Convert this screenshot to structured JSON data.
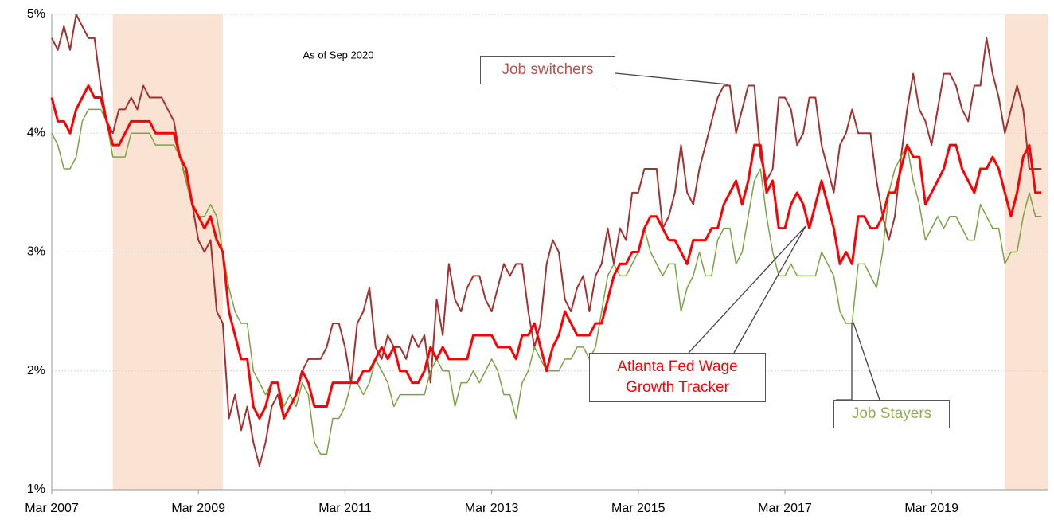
{
  "chart_data": {
    "type": "line",
    "annotation": "As of Sep 2020",
    "x": [
      "2007-03",
      "2007-04",
      "2007-05",
      "2007-06",
      "2007-07",
      "2007-08",
      "2007-09",
      "2007-10",
      "2007-11",
      "2007-12",
      "2008-01",
      "2008-02",
      "2008-03",
      "2008-04",
      "2008-05",
      "2008-06",
      "2008-07",
      "2008-08",
      "2008-09",
      "2008-10",
      "2008-11",
      "2008-12",
      "2009-01",
      "2009-02",
      "2009-03",
      "2009-04",
      "2009-05",
      "2009-06",
      "2009-07",
      "2009-08",
      "2009-09",
      "2009-10",
      "2009-11",
      "2009-12",
      "2010-01",
      "2010-02",
      "2010-03",
      "2010-04",
      "2010-05",
      "2010-06",
      "2010-07",
      "2010-08",
      "2010-09",
      "2010-10",
      "2010-11",
      "2010-12",
      "2011-01",
      "2011-02",
      "2011-03",
      "2011-04",
      "2011-05",
      "2011-06",
      "2011-07",
      "2011-08",
      "2011-09",
      "2011-10",
      "2011-11",
      "2011-12",
      "2012-01",
      "2012-02",
      "2012-03",
      "2012-04",
      "2012-05",
      "2012-06",
      "2012-07",
      "2012-08",
      "2012-09",
      "2012-10",
      "2012-11",
      "2012-12",
      "2013-01",
      "2013-02",
      "2013-03",
      "2013-04",
      "2013-05",
      "2013-06",
      "2013-07",
      "2013-08",
      "2013-09",
      "2013-10",
      "2013-11",
      "2013-12",
      "2014-01",
      "2014-02",
      "2014-03",
      "2014-04",
      "2014-05",
      "2014-06",
      "2014-07",
      "2014-08",
      "2014-09",
      "2014-10",
      "2014-11",
      "2014-12",
      "2015-01",
      "2015-02",
      "2015-03",
      "2015-04",
      "2015-05",
      "2015-06",
      "2015-07",
      "2015-08",
      "2015-09",
      "2015-10",
      "2015-11",
      "2015-12",
      "2016-01",
      "2016-02",
      "2016-03",
      "2016-04",
      "2016-05",
      "2016-06",
      "2016-07",
      "2016-08",
      "2016-09",
      "2016-10",
      "2016-11",
      "2016-12",
      "2017-01",
      "2017-02",
      "2017-03",
      "2017-04",
      "2017-05",
      "2017-06",
      "2017-07",
      "2017-08",
      "2017-09",
      "2017-10",
      "2017-11",
      "2017-12",
      "2018-01",
      "2018-02",
      "2018-03",
      "2018-04",
      "2018-05",
      "2018-06",
      "2018-07",
      "2018-08",
      "2018-09",
      "2018-10",
      "2018-11",
      "2018-12",
      "2019-01",
      "2019-02",
      "2019-03",
      "2019-04",
      "2019-05",
      "2019-06",
      "2019-07",
      "2019-08",
      "2019-09",
      "2019-10",
      "2019-11",
      "2019-12",
      "2020-01",
      "2020-02",
      "2020-03",
      "2020-04",
      "2020-05",
      "2020-06",
      "2020-07",
      "2020-08",
      "2020-09"
    ],
    "series": [
      {
        "name": "Job switchers",
        "color": "#a5312f",
        "width": 2,
        "values": [
          4.8,
          4.7,
          4.9,
          4.7,
          5.0,
          4.9,
          4.8,
          4.8,
          4.4,
          4.1,
          4.0,
          4.2,
          4.2,
          4.3,
          4.2,
          4.4,
          4.3,
          4.3,
          4.3,
          4.2,
          4.1,
          3.8,
          3.6,
          3.4,
          3.1,
          3.0,
          3.1,
          2.5,
          2.4,
          1.6,
          1.8,
          1.5,
          1.7,
          1.4,
          1.2,
          1.4,
          1.7,
          1.8,
          1.6,
          1.7,
          1.8,
          2.0,
          2.1,
          2.1,
          2.1,
          2.2,
          2.4,
          2.4,
          2.2,
          1.9,
          2.4,
          2.5,
          2.7,
          2.2,
          2.1,
          2.3,
          2.2,
          2.2,
          2.1,
          2.3,
          2.2,
          2.3,
          1.9,
          2.6,
          2.3,
          2.9,
          2.6,
          2.5,
          2.7,
          2.8,
          2.8,
          2.6,
          2.5,
          2.7,
          2.9,
          2.8,
          2.9,
          2.9,
          2.5,
          2.2,
          2.4,
          2.9,
          3.1,
          3.0,
          2.6,
          2.5,
          2.7,
          2.8,
          2.5,
          2.8,
          2.9,
          3.2,
          2.9,
          3.2,
          3.1,
          3.5,
          3.5,
          3.7,
          3.7,
          3.7,
          3.2,
          3.3,
          3.5,
          3.9,
          3.5,
          3.4,
          3.7,
          3.9,
          4.1,
          4.3,
          4.4,
          4.4,
          4.0,
          4.2,
          4.4,
          4.4,
          3.8,
          3.6,
          3.7,
          4.3,
          4.3,
          4.2,
          3.9,
          4.0,
          4.3,
          4.3,
          3.9,
          3.7,
          3.5,
          3.9,
          4.0,
          4.2,
          4.0,
          4.0,
          4.0,
          3.6,
          3.3,
          3.1,
          3.3,
          3.8,
          4.2,
          4.5,
          4.2,
          4.1,
          3.9,
          4.2,
          4.5,
          4.5,
          4.4,
          4.2,
          4.1,
          4.4,
          4.4,
          4.8,
          4.5,
          4.3,
          4.0,
          4.2,
          4.4,
          4.2,
          3.7,
          3.7,
          3.7
        ]
      },
      {
        "name": "Atlanta Fed Wage Growth Tracker",
        "color": "#ff0000",
        "width": 3,
        "values": [
          4.3,
          4.1,
          4.1,
          4.0,
          4.2,
          4.3,
          4.4,
          4.3,
          4.3,
          4.1,
          3.9,
          3.9,
          4.0,
          4.1,
          4.1,
          4.1,
          4.1,
          4.0,
          4.0,
          4.0,
          4.0,
          3.8,
          3.7,
          3.4,
          3.3,
          3.2,
          3.3,
          3.1,
          3.0,
          2.5,
          2.3,
          2.1,
          2.1,
          1.7,
          1.6,
          1.7,
          1.9,
          1.9,
          1.6,
          1.7,
          1.8,
          2.0,
          1.9,
          1.7,
          1.7,
          1.7,
          1.9,
          1.9,
          1.9,
          1.9,
          1.9,
          2.0,
          2.0,
          2.1,
          2.2,
          2.1,
          2.2,
          2.0,
          2.0,
          1.9,
          1.9,
          2.0,
          2.2,
          2.1,
          2.2,
          2.1,
          2.1,
          2.1,
          2.1,
          2.3,
          2.3,
          2.3,
          2.3,
          2.2,
          2.2,
          2.2,
          2.1,
          2.3,
          2.3,
          2.4,
          2.2,
          2.0,
          2.2,
          2.3,
          2.5,
          2.4,
          2.3,
          2.3,
          2.3,
          2.4,
          2.4,
          2.6,
          2.8,
          2.9,
          2.9,
          3.0,
          3.0,
          3.2,
          3.3,
          3.3,
          3.2,
          3.1,
          3.1,
          3.0,
          2.9,
          3.1,
          3.1,
          3.1,
          3.2,
          3.2,
          3.4,
          3.5,
          3.6,
          3.4,
          3.6,
          3.9,
          3.9,
          3.5,
          3.6,
          3.2,
          3.2,
          3.4,
          3.5,
          3.4,
          3.2,
          3.4,
          3.6,
          3.4,
          3.2,
          2.9,
          3.0,
          2.9,
          3.3,
          3.3,
          3.2,
          3.2,
          3.3,
          3.5,
          3.5,
          3.7,
          3.9,
          3.8,
          3.8,
          3.4,
          3.5,
          3.6,
          3.7,
          3.9,
          3.9,
          3.7,
          3.6,
          3.5,
          3.7,
          3.7,
          3.8,
          3.7,
          3.5,
          3.3,
          3.5,
          3.8,
          3.9,
          3.5,
          3.5
        ]
      },
      {
        "name": "Job Stayers",
        "color": "#77a640",
        "width": 1.5,
        "values": [
          4.0,
          3.9,
          3.7,
          3.7,
          3.8,
          4.1,
          4.2,
          4.2,
          4.2,
          4.1,
          3.8,
          3.8,
          3.8,
          4.0,
          4.0,
          4.0,
          4.0,
          3.9,
          3.9,
          3.9,
          3.9,
          3.8,
          3.6,
          3.4,
          3.3,
          3.3,
          3.4,
          3.3,
          3.0,
          2.7,
          2.5,
          2.4,
          2.4,
          2.0,
          1.9,
          1.8,
          1.9,
          1.9,
          1.7,
          1.8,
          1.7,
          1.9,
          1.8,
          1.4,
          1.3,
          1.3,
          1.6,
          1.6,
          1.7,
          1.9,
          1.9,
          1.8,
          1.9,
          2.1,
          2.0,
          1.9,
          1.7,
          1.8,
          1.8,
          1.8,
          1.8,
          1.8,
          2.0,
          2.1,
          2.0,
          2.0,
          1.7,
          1.9,
          1.9,
          2.0,
          1.9,
          2.0,
          2.1,
          2.0,
          1.8,
          1.8,
          1.6,
          1.9,
          2.0,
          2.2,
          2.1,
          2.0,
          2.0,
          2.0,
          2.1,
          2.1,
          2.2,
          2.2,
          2.1,
          2.2,
          2.5,
          2.8,
          2.9,
          2.8,
          2.8,
          2.9,
          3.0,
          3.2,
          3.0,
          2.9,
          2.8,
          2.9,
          2.9,
          2.5,
          2.7,
          2.8,
          3.0,
          2.8,
          2.8,
          3.1,
          3.2,
          3.2,
          2.9,
          3.0,
          3.3,
          3.6,
          3.7,
          3.3,
          3.0,
          2.8,
          2.8,
          2.9,
          2.8,
          2.8,
          2.8,
          2.8,
          3.0,
          2.9,
          2.8,
          2.5,
          2.4,
          2.4,
          2.9,
          2.9,
          2.8,
          2.7,
          3.0,
          3.5,
          3.7,
          3.8,
          3.9,
          3.6,
          3.4,
          3.1,
          3.2,
          3.3,
          3.2,
          3.3,
          3.3,
          3.2,
          3.1,
          3.1,
          3.4,
          3.3,
          3.2,
          3.2,
          2.9,
          3.0,
          3.0,
          3.3,
          3.5,
          3.3,
          3.3
        ]
      }
    ],
    "xlim": [
      "2007-03",
      "2020-10"
    ],
    "xticks": [
      {
        "value": "2007-03",
        "label": "Mar 2007"
      },
      {
        "value": "2009-03",
        "label": "Mar 2009"
      },
      {
        "value": "2011-03",
        "label": "Mar 2011"
      },
      {
        "value": "2013-03",
        "label": "Mar 2013"
      },
      {
        "value": "2015-03",
        "label": "Mar 2015"
      },
      {
        "value": "2017-03",
        "label": "Mar 2017"
      },
      {
        "value": "2019-03",
        "label": "Mar 2019"
      }
    ],
    "ylim": [
      1,
      5
    ],
    "yticks": [
      {
        "value": 1,
        "label": "1%"
      },
      {
        "value": 2,
        "label": "2%"
      },
      {
        "value": 3,
        "label": "3%"
      },
      {
        "value": 4,
        "label": "4%"
      },
      {
        "value": 5,
        "label": "5%"
      }
    ],
    "grid": true,
    "shading": {
      "color": "#fbe3d3",
      "ranges": [
        [
          "2008-01",
          "2009-07"
        ],
        [
          "2020-03",
          "2020-10"
        ]
      ]
    }
  }
}
